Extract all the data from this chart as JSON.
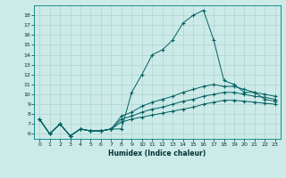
{
  "xlabel": "Humidex (Indice chaleur)",
  "bg_color": "#cceae8",
  "grid_color": "#b0d4d0",
  "line_color": "#006060",
  "xlim": [
    -0.5,
    23.5
  ],
  "ylim": [
    5.5,
    19.0
  ],
  "xticks": [
    0,
    1,
    2,
    3,
    4,
    5,
    6,
    7,
    8,
    9,
    10,
    11,
    12,
    13,
    14,
    15,
    16,
    17,
    18,
    19,
    20,
    21,
    22,
    23
  ],
  "yticks": [
    6,
    7,
    8,
    9,
    10,
    11,
    12,
    13,
    14,
    15,
    16,
    17,
    18
  ],
  "line1_x": [
    0,
    1,
    2,
    3,
    4,
    5,
    6,
    7,
    8,
    9,
    10,
    11,
    12,
    13,
    14,
    15,
    16,
    17,
    18,
    19,
    20,
    21,
    22,
    23
  ],
  "line1_y": [
    7.5,
    6.0,
    7.0,
    5.8,
    6.5,
    6.3,
    6.3,
    6.5,
    6.5,
    10.2,
    12.0,
    14.0,
    14.5,
    15.5,
    17.2,
    18.0,
    18.5,
    15.5,
    11.4,
    11.0,
    10.2,
    10.2,
    9.5,
    9.3
  ],
  "line2_x": [
    0,
    1,
    2,
    3,
    4,
    5,
    6,
    7,
    8,
    9,
    10,
    11,
    12,
    13,
    14,
    15,
    16,
    17,
    18,
    19,
    20,
    21,
    22,
    23
  ],
  "line2_y": [
    7.5,
    6.0,
    7.0,
    5.8,
    6.5,
    6.3,
    6.3,
    6.5,
    7.8,
    8.2,
    8.8,
    9.2,
    9.5,
    9.8,
    10.2,
    10.5,
    10.8,
    11.0,
    10.8,
    10.8,
    10.5,
    10.2,
    10.0,
    9.8
  ],
  "line3_x": [
    0,
    1,
    2,
    3,
    4,
    5,
    6,
    7,
    8,
    9,
    10,
    11,
    12,
    13,
    14,
    15,
    16,
    17,
    18,
    19,
    20,
    21,
    22,
    23
  ],
  "line3_y": [
    7.5,
    6.0,
    7.0,
    5.8,
    6.5,
    6.3,
    6.3,
    6.5,
    7.5,
    7.8,
    8.2,
    8.5,
    8.7,
    9.0,
    9.3,
    9.5,
    9.8,
    10.0,
    10.2,
    10.2,
    10.0,
    9.8,
    9.7,
    9.5
  ],
  "line4_x": [
    0,
    1,
    2,
    3,
    4,
    5,
    6,
    7,
    8,
    9,
    10,
    11,
    12,
    13,
    14,
    15,
    16,
    17,
    18,
    19,
    20,
    21,
    22,
    23
  ],
  "line4_y": [
    7.5,
    6.0,
    7.0,
    5.8,
    6.5,
    6.3,
    6.3,
    6.5,
    7.2,
    7.5,
    7.7,
    7.9,
    8.1,
    8.3,
    8.5,
    8.7,
    9.0,
    9.2,
    9.4,
    9.4,
    9.3,
    9.2,
    9.1,
    9.0
  ]
}
